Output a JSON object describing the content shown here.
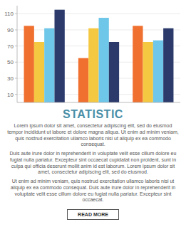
{
  "chart_data": {
    "type": "bar",
    "title": "STATISTIC",
    "categories": [
      null,
      null,
      null
    ],
    "series": [
      {
        "color": "#F07030",
        "values": [
          95,
          55,
          95
        ]
      },
      {
        "color": "#F5C842",
        "values": [
          75,
          92,
          75
        ]
      },
      {
        "color": "#6EC6E8",
        "values": [
          92,
          105,
          77
        ]
      },
      {
        "color": "#2B3A6B",
        "values": [
          115,
          75,
          92
        ]
      }
    ],
    "ylim": [
      0,
      120
    ],
    "yticks": [
      10,
      30,
      50,
      70,
      90,
      110
    ],
    "grid": true,
    "tick_labels": "y",
    "annotations": [
      "Lorem ipsum dolor sit amet, consectetur adipiscing elit, sed do eiusmod tempor incididunt ut labore et dolore magna aliqua. Ut enim ad minim veniam, quis nostrud exercitation ullamco laboris nisi ut aliquip ex ea commodo consequat.",
      "Duis aute irure dolor in reprehenderit in voluptate velit esse cillum dolore eu fugiat nulla pariatur. Excepteur sint occaecat cupidatat non proident, sunt in culpa qui officia deserunt mollit anim id est laborum. Lorem ipsum dolor sit amet, consectetur adipiscing elit, sed do eiusmod.",
      "Ut enim ad minim veniam, quis nostrud exercitation ullamco laboris nisi ut aliquip ex ea commodo consequat. Duis aute irure dolor in reprehenderit in voluptate velit esse cillum dolore eu fugiat nulla pariatur. Excepteur sint occaecat.",
      "READ MORE"
    ]
  }
}
